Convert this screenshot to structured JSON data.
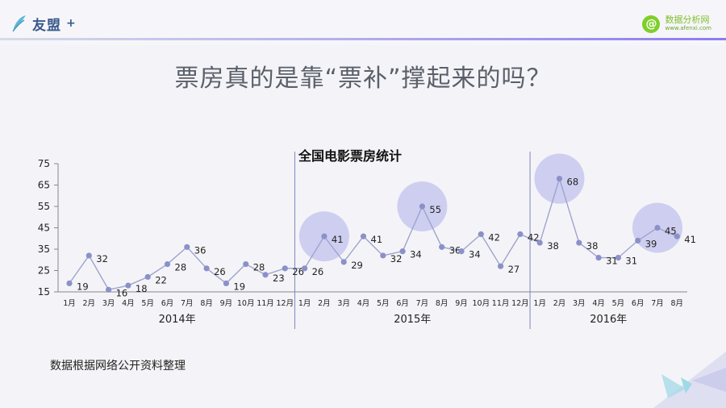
{
  "header": {
    "brand_text": "友盟",
    "brand_plus": "+",
    "site_name": "数据分析网",
    "site_url": "www.afenxi.com"
  },
  "slide": {
    "title": "票房真的是靠“票补”撑起来的吗？",
    "note": "数据根据网络公开资料整理"
  },
  "colors": {
    "line": "#9ea4cc",
    "marker": "#8b91c8",
    "highlight": "#c7c7ee",
    "divider": "#7d88b8"
  },
  "chart_data": {
    "type": "line",
    "title": "全国电影票房统计",
    "ylim": [
      15,
      75
    ],
    "yticks": [
      15,
      25,
      35,
      45,
      55,
      65,
      75
    ],
    "categories": [
      "1月",
      "2月",
      "3月",
      "4月",
      "5月",
      "6月",
      "7月",
      "8月",
      "9月",
      "10月",
      "11月",
      "12月",
      "1月",
      "2月",
      "3月",
      "4月",
      "5月",
      "6月",
      "7月",
      "8月",
      "9月",
      "10月",
      "11月",
      "12月",
      "1月",
      "2月",
      "3月",
      "4月",
      "5月",
      "6月",
      "7月",
      "8月"
    ],
    "groups": [
      {
        "label": "2014年",
        "start": 0,
        "end": 11
      },
      {
        "label": "2015年",
        "start": 12,
        "end": 23
      },
      {
        "label": "2016年",
        "start": 24,
        "end": 31
      }
    ],
    "series": [
      {
        "values": [
          19,
          32,
          16,
          18,
          22,
          28,
          36,
          26,
          19,
          28,
          23,
          26,
          26,
          41,
          29,
          41,
          32,
          34,
          55,
          36,
          34,
          42,
          27,
          42,
          38,
          68,
          38,
          31,
          31,
          39,
          45,
          41
        ]
      }
    ],
    "highlighted_points": [
      13,
      18,
      25,
      30
    ],
    "grid": false
  }
}
